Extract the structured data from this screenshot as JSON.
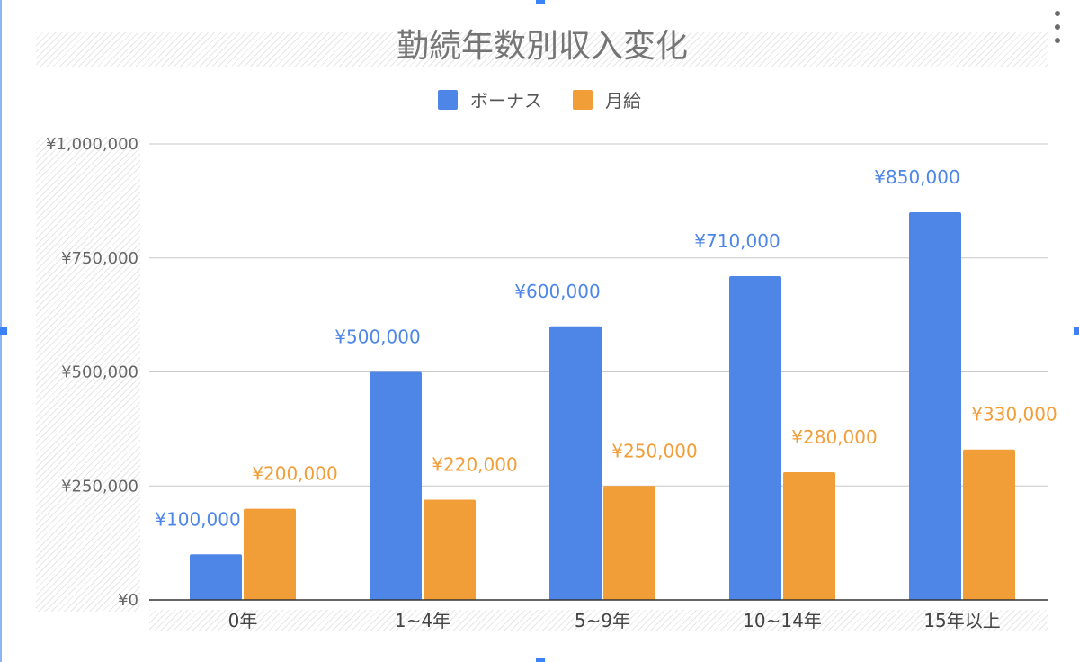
{
  "chart_data": {
    "type": "bar",
    "title": "勤続年数別収入変化",
    "categories": [
      "0年",
      "1~4年",
      "5~9年",
      "10~14年",
      "15年以上"
    ],
    "series": [
      {
        "name": "ボーナス",
        "color": "#4E86E8",
        "values": [
          100000,
          500000,
          600000,
          710000,
          850000
        ],
        "labels": [
          "¥100,000",
          "¥500,000",
          "¥600,000",
          "¥710,000",
          "¥850,000"
        ]
      },
      {
        "name": "月給",
        "color": "#F29E38",
        "values": [
          200000,
          220000,
          250000,
          280000,
          330000
        ],
        "labels": [
          "¥200,000",
          "¥220,000",
          "¥250,000",
          "¥280,000",
          "¥330,000"
        ]
      }
    ],
    "ylim": [
      0,
      1000000
    ],
    "yticks": [
      0,
      250000,
      500000,
      750000,
      1000000
    ],
    "ytick_labels": [
      "¥0",
      "¥250,000",
      "¥500,000",
      "¥750,000",
      "¥1,000,000"
    ],
    "grid": true,
    "legend_position": "top-center",
    "xlabel": "",
    "ylabel": ""
  }
}
